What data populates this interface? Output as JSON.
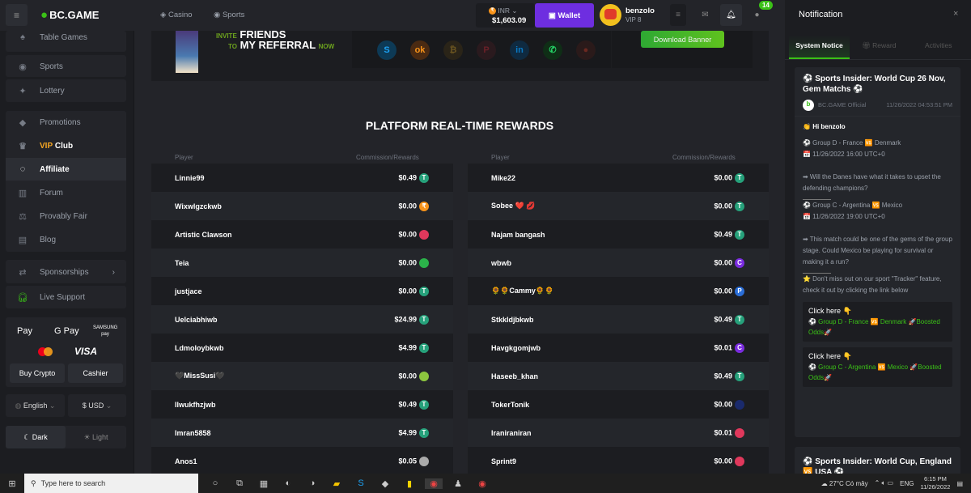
{
  "header": {
    "logo": "BC.GAME",
    "nav": [
      "Casino",
      "Sports"
    ],
    "currency": "INR",
    "balance": "$1,603.09",
    "wallet": "Wallet",
    "username": "benzolo",
    "vip": "VIP 8",
    "chat_badge": "14"
  },
  "sidebar": {
    "items": [
      "Table Games",
      "Sports",
      "Lottery",
      "Promotions",
      "VIP",
      "Club",
      "Affiliate",
      "Forum",
      "Provably Fair",
      "Blog",
      "Sponsorships",
      "Live Support"
    ],
    "payments": [
      "Pay",
      "G Pay",
      "SAMSUNG pay",
      "VISA"
    ],
    "buy_crypto": "Buy Crypto",
    "cashier": "Cashier",
    "language": "English",
    "currency": "$ USD",
    "dark": "Dark",
    "light": "Light"
  },
  "banner": {
    "invite": "INVITE",
    "friends": "FRIENDS",
    "to": "TO",
    "my_referral": "MY REFERRAL",
    "now": "NOW",
    "download": "Download Banner"
  },
  "rewards": {
    "title": "PLATFORM REAL-TIME REWARDS",
    "col_player": "Player",
    "col_reward": "Commission/Rewards",
    "left": [
      [
        "Linnie99",
        "$0.49",
        "usdt"
      ],
      [
        "Wixwlgzckwb",
        "$0.00",
        "inr"
      ],
      [
        "Artistic Clawson",
        "$0.00",
        "trx"
      ],
      [
        "Teia",
        "$0.00",
        "green"
      ],
      [
        "justjace",
        "$0.00",
        "usdt"
      ],
      [
        "Uelciabhiwb",
        "$24.99",
        "usdt"
      ],
      [
        "Ldmoloybkwb",
        "$4.99",
        "usdt"
      ],
      [
        "🖤MissSusi🖤",
        "$0.00",
        "lime"
      ],
      [
        "Ilwukfhzjwb",
        "$0.49",
        "usdt"
      ],
      [
        "Imran5858",
        "$4.99",
        "usdt"
      ],
      [
        "Anos1",
        "$0.05",
        "grey"
      ]
    ],
    "right": [
      [
        "Mike22",
        "$0.00",
        "usdt"
      ],
      [
        "Sobee ❤️ 💋",
        "$0.00",
        "usdt"
      ],
      [
        "Najam bangash",
        "$0.49",
        "usdt"
      ],
      [
        "wbwb",
        "$0.00",
        "purple"
      ],
      [
        "🌻🌻Cammy🌻🌻",
        "$0.00",
        "blue"
      ],
      [
        "Stkkldjbkwb",
        "$0.49",
        "usdt"
      ],
      [
        "Havgkgomjwb",
        "$0.01",
        "purple"
      ],
      [
        "Haseeb_khan",
        "$0.49",
        "usdt"
      ],
      [
        "TokerTonik",
        "$0.00",
        "navy"
      ],
      [
        "Iraniraniran",
        "$0.01",
        "trx"
      ],
      [
        "Sprint9",
        "$0.00",
        "trx"
      ]
    ]
  },
  "coin_colors": {
    "usdt": "#26a17b",
    "inr": "#f7931a",
    "trx": "#e0385c",
    "green": "#2bb34a",
    "lime": "#8dc63f",
    "grey": "#aaaaaa",
    "purple": "#7b2ce0",
    "blue": "#2a6ed8",
    "navy": "#1a2a6c"
  },
  "notification": {
    "title": "Notification",
    "tabs": [
      "System Notice",
      "Reward",
      "Activities"
    ],
    "card1": {
      "title": "⚽ Sports Insider: World Cup 26 Nov, Gem Matchs ⚽",
      "author": "BC.GAME Official",
      "time": "11/26/2022 04:53:51 PM",
      "greeting": "Hi benzolo",
      "m1": "⚽ Group D - France 🆚 Denmark",
      "d1": "📅 11/26/2022 16:00 UTC+0",
      "q1": "➡ Will the Danes have what it takes to upset the defending champions?",
      "m2": "⚽ Group C - Argentina 🆚 Mexico",
      "d2": "📅 11/26/2022 19:00 UTC+0",
      "q2": "➡ This match could be one of the gems of the group stage. Could Mexico be playing for survival or making it a run?",
      "tracker": "⭐ Don't miss out on our sport \"Tracker\" feature, check it out by clicking the link below",
      "click": "Click here 👇",
      "l1": "⚽ Group D - France 🆚 Denmark 🚀Boosted Odds🚀",
      "l2": "⚽ Group C - Argentina 🆚 Mexico 🚀Boosted Odds🚀"
    },
    "card2": {
      "title": "⚽ Sports Insider: World Cup, England 🆚 USA ⚽"
    }
  },
  "taskbar": {
    "search": "Type here to search",
    "weather": "27°C  Có mây",
    "lang": "ENG",
    "time": "6:15 PM",
    "date": "11/26/2022"
  },
  "accent": "#3bc117",
  "wallet_color": "#6e2ee0"
}
